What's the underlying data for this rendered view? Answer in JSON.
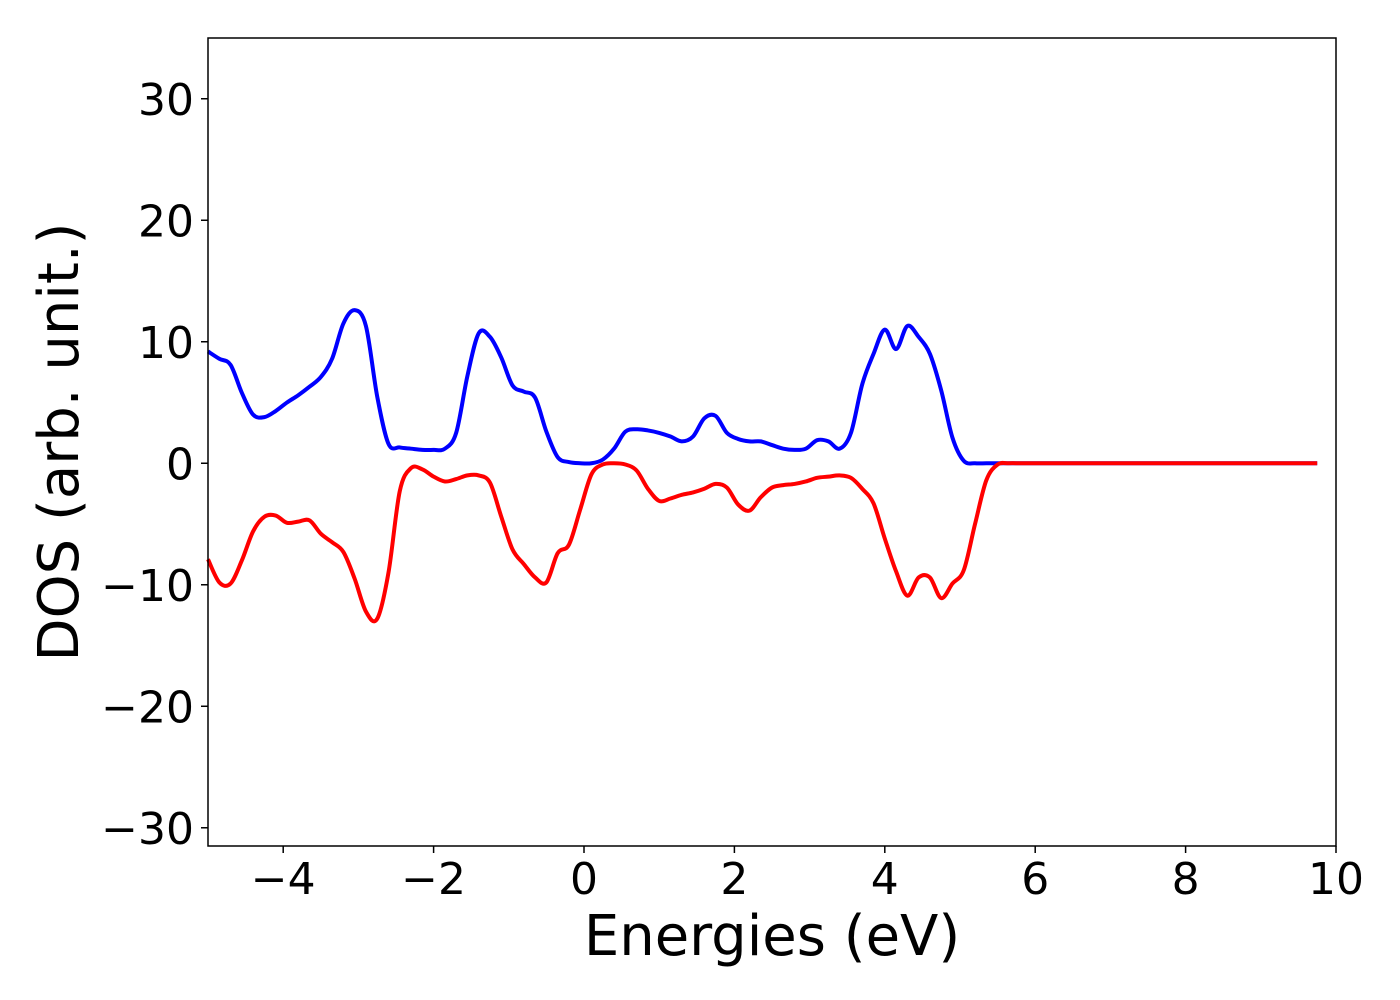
{
  "chart_data": {
    "type": "line",
    "title": "",
    "xlabel": "Energies (eV)",
    "ylabel": "DOS (arb. unit.)",
    "xlim": [
      -5,
      10
    ],
    "ylim": [
      -31.5,
      35
    ],
    "xticks": [
      -4,
      -2,
      0,
      2,
      4,
      6,
      8,
      10
    ],
    "xtick_labels": [
      "−4",
      "−2",
      "0",
      "2",
      "4",
      "6",
      "8",
      "10"
    ],
    "yticks": [
      30,
      20,
      10,
      0,
      -10,
      -20,
      -30
    ],
    "ytick_labels": [
      "30",
      "20",
      "10",
      "0",
      "−10",
      "−20",
      "−30"
    ],
    "grid": false,
    "legend": "none",
    "series": [
      {
        "color": "#0000ff",
        "x": [
          -5.0,
          -4.85,
          -4.7,
          -4.55,
          -4.4,
          -4.25,
          -4.1,
          -3.95,
          -3.8,
          -3.65,
          -3.5,
          -3.35,
          -3.2,
          -3.05,
          -2.9,
          -2.75,
          -2.6,
          -2.45,
          -2.3,
          -2.15,
          -2.0,
          -1.85,
          -1.7,
          -1.55,
          -1.4,
          -1.25,
          -1.1,
          -0.95,
          -0.8,
          -0.65,
          -0.5,
          -0.35,
          -0.2,
          -0.05,
          0.1,
          0.25,
          0.4,
          0.55,
          0.7,
          0.85,
          1.0,
          1.15,
          1.3,
          1.45,
          1.6,
          1.75,
          1.9,
          2.05,
          2.2,
          2.35,
          2.5,
          2.65,
          2.8,
          2.95,
          3.1,
          3.25,
          3.4,
          3.55,
          3.7,
          3.85,
          4.0,
          4.15,
          4.3,
          4.45,
          4.6,
          4.75,
          4.9,
          5.05,
          5.2,
          5.35,
          5.5,
          5.65,
          5.8,
          5.95,
          6.1,
          6.25,
          6.4,
          6.55,
          6.7,
          6.85,
          7.0,
          7.15,
          7.3,
          7.45,
          7.6,
          8.0,
          8.5,
          9.0,
          9.5,
          9.75
        ],
        "values": [
          9.2,
          8.6,
          8.1,
          5.8,
          4.0,
          3.8,
          4.3,
          5.0,
          5.6,
          6.3,
          7.1,
          8.6,
          11.5,
          12.6,
          11.3,
          5.5,
          1.6,
          1.3,
          1.2,
          1.1,
          1.1,
          1.2,
          2.5,
          7.2,
          10.7,
          10.4,
          8.7,
          6.4,
          5.9,
          5.4,
          2.6,
          0.5,
          0.1,
          0.0,
          0.0,
          0.3,
          1.2,
          2.6,
          2.8,
          2.7,
          2.5,
          2.2,
          1.8,
          2.2,
          3.7,
          3.9,
          2.5,
          2.0,
          1.8,
          1.8,
          1.5,
          1.2,
          1.1,
          1.2,
          1.9,
          1.8,
          1.2,
          2.5,
          6.5,
          9.0,
          11.0,
          9.4,
          11.3,
          10.4,
          9.0,
          6.0,
          2.1,
          0.2,
          0.0,
          0.0,
          0.0,
          0.0,
          0.0,
          0.0,
          0.0,
          0.0,
          0.0,
          0.0,
          0.0,
          0.0,
          0.0,
          0.0,
          0.0,
          0.0,
          0.0,
          0.0,
          0.0,
          0.0,
          0.0,
          0.0
        ]
      },
      {
        "color": "#ff0000",
        "x": [
          -5.0,
          -4.85,
          -4.7,
          -4.55,
          -4.4,
          -4.25,
          -4.1,
          -3.95,
          -3.8,
          -3.65,
          -3.5,
          -3.35,
          -3.2,
          -3.05,
          -2.9,
          -2.75,
          -2.6,
          -2.45,
          -2.3,
          -2.15,
          -2.0,
          -1.85,
          -1.7,
          -1.55,
          -1.4,
          -1.25,
          -1.1,
          -0.95,
          -0.8,
          -0.65,
          -0.5,
          -0.35,
          -0.2,
          -0.05,
          0.1,
          0.25,
          0.4,
          0.55,
          0.7,
          0.85,
          1.0,
          1.15,
          1.3,
          1.45,
          1.6,
          1.75,
          1.9,
          2.05,
          2.2,
          2.35,
          2.5,
          2.65,
          2.8,
          2.95,
          3.1,
          3.25,
          3.4,
          3.55,
          3.7,
          3.85,
          4.0,
          4.15,
          4.3,
          4.45,
          4.6,
          4.75,
          4.9,
          5.05,
          5.2,
          5.35,
          5.5,
          5.65,
          5.8,
          5.95,
          6.1,
          6.25,
          6.4,
          6.55,
          6.7,
          6.85,
          7.0,
          7.15,
          7.3,
          7.45,
          7.6,
          8.0,
          8.5,
          9.0,
          9.5,
          9.75
        ],
        "values": [
          -7.9,
          -9.8,
          -9.9,
          -8.0,
          -5.6,
          -4.4,
          -4.3,
          -4.9,
          -4.8,
          -4.7,
          -5.8,
          -6.5,
          -7.3,
          -9.5,
          -12.2,
          -12.8,
          -9.0,
          -2.3,
          -0.4,
          -0.5,
          -1.1,
          -1.5,
          -1.3,
          -1.0,
          -1.0,
          -1.6,
          -4.4,
          -7.1,
          -8.3,
          -9.4,
          -9.8,
          -7.4,
          -6.7,
          -3.8,
          -0.9,
          -0.1,
          0.0,
          -0.1,
          -0.6,
          -2.1,
          -3.1,
          -2.9,
          -2.6,
          -2.4,
          -2.1,
          -1.7,
          -2.0,
          -3.4,
          -3.9,
          -2.8,
          -2.0,
          -1.8,
          -1.7,
          -1.5,
          -1.2,
          -1.1,
          -1.0,
          -1.2,
          -2.1,
          -3.3,
          -6.2,
          -8.9,
          -10.9,
          -9.4,
          -9.4,
          -11.1,
          -9.9,
          -8.8,
          -5.0,
          -1.4,
          -0.1,
          0.0,
          0.0,
          0.0,
          0.0,
          0.0,
          0.0,
          0.0,
          0.0,
          0.0,
          0.0,
          0.0,
          0.0,
          0.0,
          0.0,
          0.0,
          0.0,
          0.0,
          0.0,
          0.0
        ]
      }
    ]
  }
}
